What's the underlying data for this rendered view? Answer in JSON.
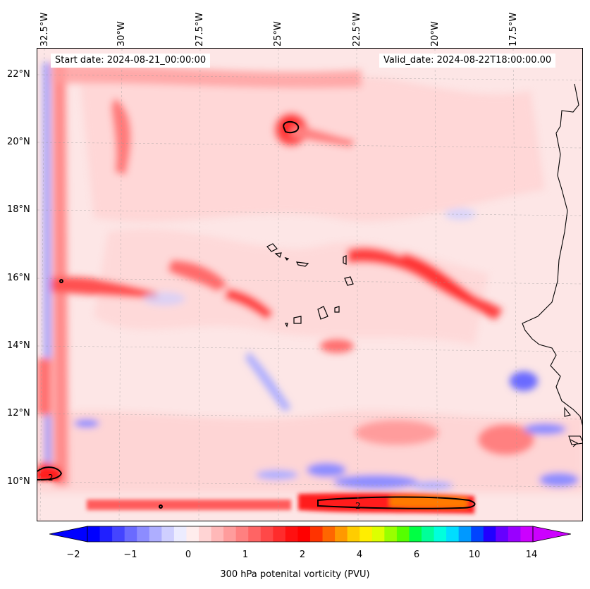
{
  "map": {
    "longitude_labels": [
      "32.5°W",
      "30°W",
      "27.5°W",
      "25°W",
      "22.5°W",
      "20°W",
      "17.5°W"
    ],
    "latitude_labels": [
      "22°N",
      "20°N",
      "18°N",
      "16°N",
      "14°N",
      "12°N",
      "10°N"
    ],
    "start_date": "Start date: 2024-08-21_00:00:00",
    "valid_date": "Valid_date: 2024-08-22T18:00:00.00",
    "contour_labels": [
      "2",
      "2"
    ]
  },
  "colorbar": {
    "tick_labels": [
      "−2",
      "−1",
      "0",
      "1",
      "2",
      "4",
      "6",
      "10",
      "14"
    ],
    "label": "300 hPa potenital vorticity (PVU)",
    "colors": [
      "#0000ff",
      "#2020ff",
      "#4444ff",
      "#6a6aff",
      "#8c8cff",
      "#aeaeff",
      "#cfcfff",
      "#ececff",
      "#ffeded",
      "#ffd4d4",
      "#ffb8b8",
      "#ff9c9c",
      "#ff8080",
      "#ff6464",
      "#ff4848",
      "#ff2c2c",
      "#ff1010",
      "#ff0000",
      "#ff3300",
      "#ff6600",
      "#ff9900",
      "#ffcc00",
      "#ffee00",
      "#ddff00",
      "#99ff00",
      "#55ff00",
      "#00ff44",
      "#00ff99",
      "#00ffdd",
      "#00ddff",
      "#0099ff",
      "#0044ff",
      "#2200ff",
      "#6600ff",
      "#9900ff",
      "#cc00ff"
    ],
    "under_color": "#0000ff",
    "over_color": "#cc00ff"
  }
}
